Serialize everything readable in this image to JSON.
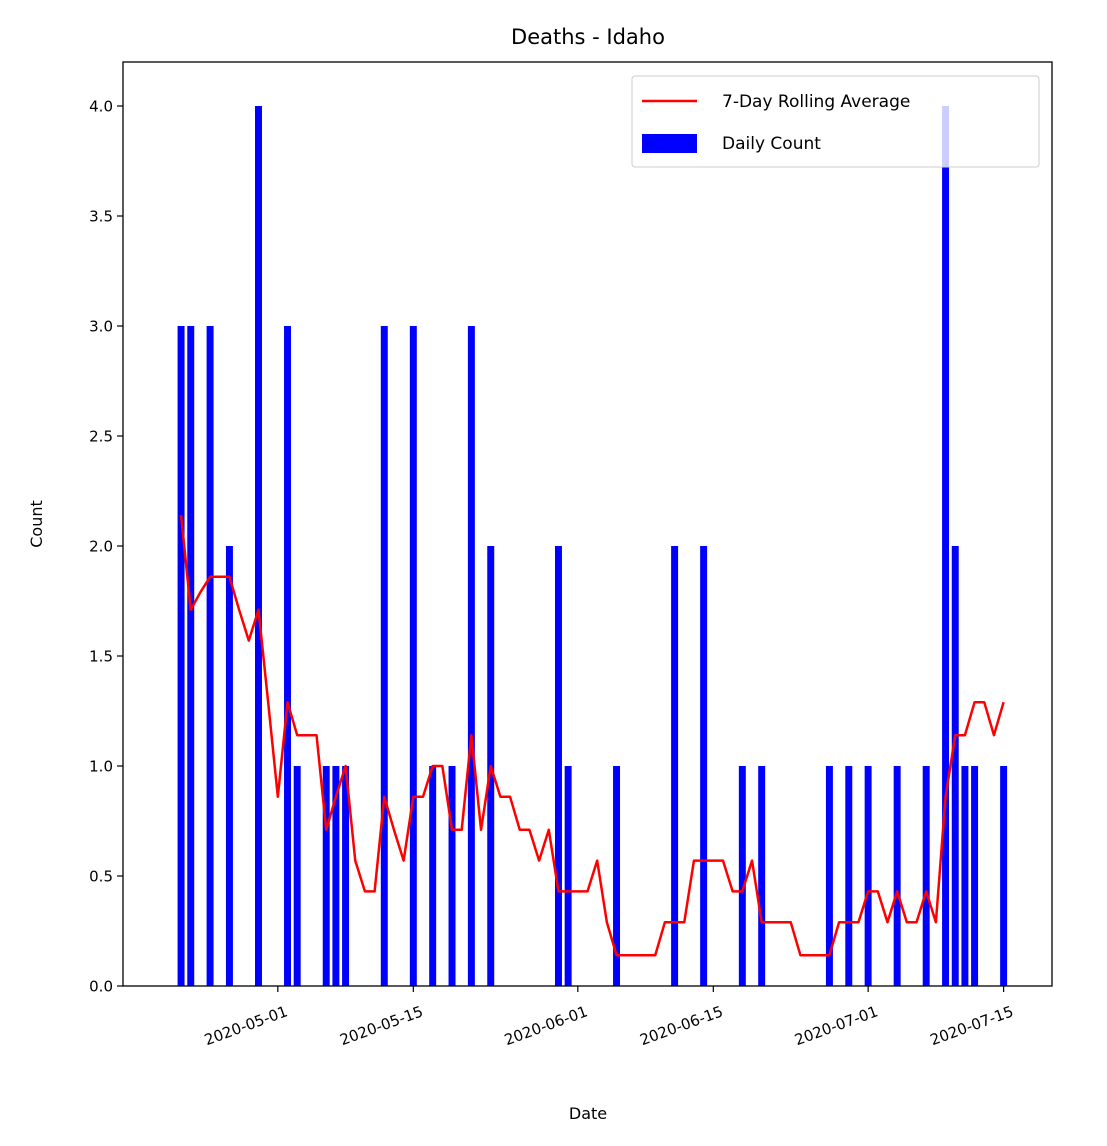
{
  "chart_data": {
    "type": "bar",
    "title": "Deaths - Idaho",
    "xlabel": "Date",
    "ylabel": "Count",
    "ylim": [
      0,
      4.2
    ],
    "yticks": [
      0.0,
      0.5,
      1.0,
      1.5,
      2.0,
      2.5,
      3.0,
      3.5,
      4.0
    ],
    "ytick_labels": [
      "0.0",
      "0.5",
      "1.0",
      "1.5",
      "2.0",
      "2.5",
      "3.0",
      "3.5",
      "4.0"
    ],
    "xlim": [
      "2020-04-15",
      "2020-07-20"
    ],
    "xticks": [
      "2020-05-01",
      "2020-05-15",
      "2020-06-01",
      "2020-06-15",
      "2020-07-01",
      "2020-07-15"
    ],
    "grid": false,
    "legend": {
      "position": "top-right"
    },
    "series": [
      {
        "name": "7-Day Rolling Average",
        "type": "line",
        "color": "#ff0000",
        "x": [
          "2020-04-21",
          "2020-04-22",
          "2020-04-23",
          "2020-04-24",
          "2020-04-25",
          "2020-04-26",
          "2020-04-27",
          "2020-04-28",
          "2020-04-29",
          "2020-04-30",
          "2020-05-01",
          "2020-05-02",
          "2020-05-03",
          "2020-05-04",
          "2020-05-05",
          "2020-05-06",
          "2020-05-07",
          "2020-05-08",
          "2020-05-09",
          "2020-05-10",
          "2020-05-11",
          "2020-05-12",
          "2020-05-13",
          "2020-05-14",
          "2020-05-15",
          "2020-05-16",
          "2020-05-17",
          "2020-05-18",
          "2020-05-19",
          "2020-05-20",
          "2020-05-21",
          "2020-05-22",
          "2020-05-23",
          "2020-05-24",
          "2020-05-25",
          "2020-05-26",
          "2020-05-27",
          "2020-05-28",
          "2020-05-29",
          "2020-05-30",
          "2020-05-31",
          "2020-06-01",
          "2020-06-02",
          "2020-06-03",
          "2020-06-04",
          "2020-06-05",
          "2020-06-06",
          "2020-06-07",
          "2020-06-08",
          "2020-06-09",
          "2020-06-10",
          "2020-06-11",
          "2020-06-12",
          "2020-06-13",
          "2020-06-14",
          "2020-06-15",
          "2020-06-16",
          "2020-06-17",
          "2020-06-18",
          "2020-06-19",
          "2020-06-20",
          "2020-06-21",
          "2020-06-22",
          "2020-06-23",
          "2020-06-24",
          "2020-06-25",
          "2020-06-26",
          "2020-06-27",
          "2020-06-28",
          "2020-06-29",
          "2020-06-30",
          "2020-07-01",
          "2020-07-02",
          "2020-07-03",
          "2020-07-04",
          "2020-07-05",
          "2020-07-06",
          "2020-07-07",
          "2020-07-08",
          "2020-07-09",
          "2020-07-10",
          "2020-07-11",
          "2020-07-12",
          "2020-07-13",
          "2020-07-14",
          "2020-07-15"
        ],
        "values": [
          2.14,
          1.71,
          1.79,
          1.86,
          1.86,
          1.86,
          1.71,
          1.57,
          1.71,
          1.29,
          0.86,
          1.29,
          1.14,
          1.14,
          1.14,
          0.71,
          0.86,
          1.0,
          0.57,
          0.43,
          0.43,
          0.86,
          0.71,
          0.57,
          0.86,
          0.86,
          1.0,
          1.0,
          0.71,
          0.71,
          1.14,
          0.71,
          1.0,
          0.86,
          0.86,
          0.71,
          0.71,
          0.57,
          0.71,
          0.43,
          0.43,
          0.43,
          0.43,
          0.57,
          0.29,
          0.14,
          0.14,
          0.14,
          0.14,
          0.14,
          0.29,
          0.29,
          0.29,
          0.57,
          0.57,
          0.57,
          0.57,
          0.43,
          0.43,
          0.57,
          0.29,
          0.29,
          0.29,
          0.29,
          0.14,
          0.14,
          0.14,
          0.14,
          0.29,
          0.29,
          0.29,
          0.43,
          0.43,
          0.29,
          0.43,
          0.29,
          0.29,
          0.43,
          0.29,
          0.86,
          1.14,
          1.14,
          1.29,
          1.29,
          1.14,
          1.29
        ]
      },
      {
        "name": "Daily Count",
        "type": "bar",
        "color": "#0000ff",
        "x": [
          "2020-04-21",
          "2020-04-22",
          "2020-04-24",
          "2020-04-26",
          "2020-04-29",
          "2020-05-02",
          "2020-05-03",
          "2020-05-06",
          "2020-05-07",
          "2020-05-08",
          "2020-05-12",
          "2020-05-15",
          "2020-05-17",
          "2020-05-19",
          "2020-05-21",
          "2020-05-23",
          "2020-05-30",
          "2020-05-31",
          "2020-06-05",
          "2020-06-11",
          "2020-06-14",
          "2020-06-18",
          "2020-06-20",
          "2020-06-27",
          "2020-06-29",
          "2020-07-01",
          "2020-07-04",
          "2020-07-07",
          "2020-07-09",
          "2020-07-10",
          "2020-07-11",
          "2020-07-12",
          "2020-07-15"
        ],
        "values": [
          3,
          3,
          3,
          2,
          4,
          3,
          1,
          1,
          1,
          1,
          3,
          3,
          1,
          1,
          3,
          2,
          2,
          1,
          1,
          2,
          2,
          1,
          1,
          1,
          1,
          1,
          1,
          1,
          4,
          2,
          1,
          1,
          1
        ]
      }
    ]
  }
}
